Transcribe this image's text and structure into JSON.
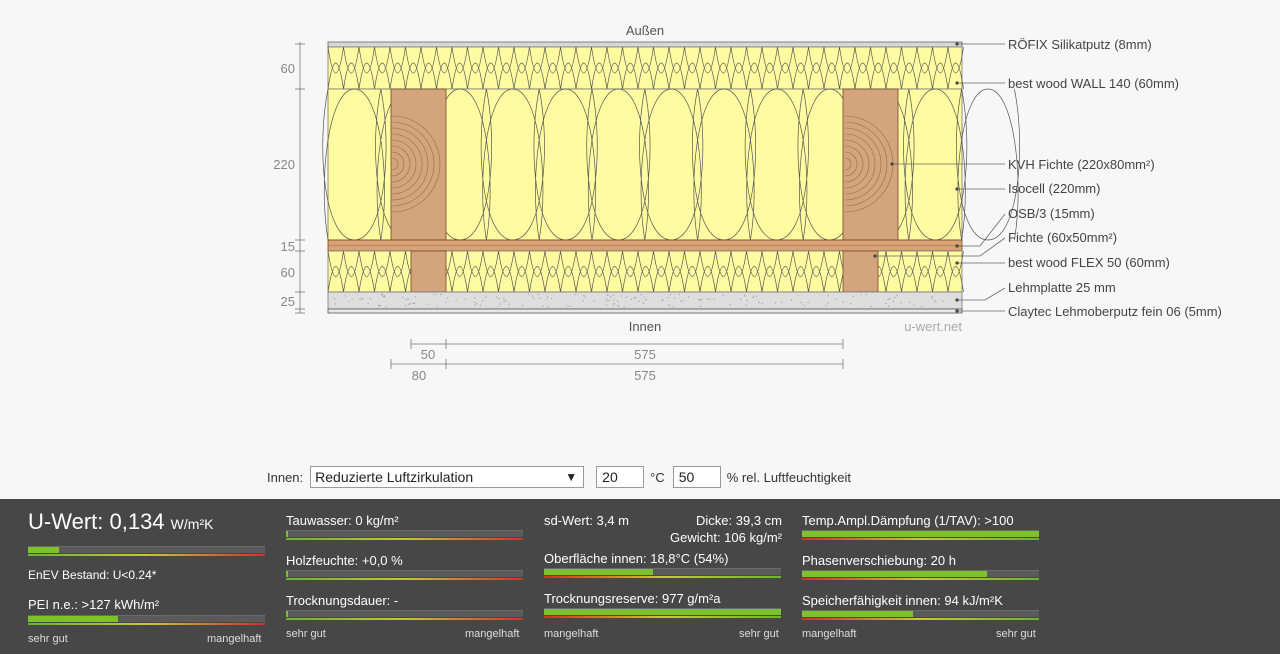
{
  "diagram": {
    "outside_label": "Außen",
    "inside_label": "Innen",
    "watermark": "u-wert.net",
    "dimensions_vertical": [
      "60",
      "220",
      "15",
      "60",
      "25"
    ],
    "dimensions_horizontal": [
      {
        "left": "50",
        "right": "575"
      },
      {
        "left": "80",
        "right": "575"
      }
    ],
    "layer_labels": [
      "RÖFIX Silikatputz (8mm)",
      "best wood WALL 140 (60mm)",
      "KVH Fichte (220x80mm²)",
      "Isocell (220mm)",
      "OSB/3 (15mm)",
      "Fichte (60x50mm²)",
      "best wood FLEX 50 (60mm)",
      "Lehmplatte 25 mm",
      "Claytec Lehmoberputz fein 06 (5mm)"
    ],
    "colors": {
      "insulation": "#fefba0",
      "wood": "#d4a57c",
      "plaster": "#d8d8d8"
    }
  },
  "controls": {
    "inside_label": "Innen:",
    "circulation": "Reduzierte Luftzirkulation",
    "temperature": "20",
    "temperature_unit": "°C",
    "humidity": "50",
    "humidity_unit": "% rel. Luftfeuchtigkeit"
  },
  "results": {
    "uwert": {
      "label": "U-Wert: 0,134",
      "unit": "W/m²K",
      "level": 0.13
    },
    "enev": "EnEV Bestand: U<0.24*",
    "pei": {
      "label": "PEI n.e.: >127 kWh/m²",
      "level": 0.38
    },
    "scale_good": "sehr gut",
    "scale_bad": "mangelhaft",
    "tauwasser": {
      "label": "Tauwasser: 0 kg/m²",
      "level": 0.01
    },
    "holzfeuchte": {
      "label": "Holzfeuchte: +0,0 %",
      "level": 0.01
    },
    "trocknungsdauer": {
      "label": "Trocknungsdauer: -",
      "level": 0.01
    },
    "sdwert": {
      "label": "sd-Wert: 3,4 m",
      "level": 0
    },
    "dicke": "Dicke: 39,3 cm",
    "gewicht": "Gewicht: 106 kg/m²",
    "oberflaeche": {
      "label": "Oberfläche innen: 18,8°C (54%)",
      "level": 0.46
    },
    "trocknungsreserve": {
      "label": "Trocknungsreserve: 977 g/m²a",
      "level": 1.0
    },
    "tav": {
      "label": "Temp.Ampl.Dämpfung (1/TAV): >100",
      "level": 1.0
    },
    "phase": {
      "label": "Phasenverschiebung: 20 h",
      "level": 0.78
    },
    "speicher": {
      "label": "Speicherfähigkeit innen: 94 kJ/m²K",
      "level": 0.47
    },
    "scale_left_rev": "mangelhaft",
    "scale_right_rev": "sehr gut"
  }
}
